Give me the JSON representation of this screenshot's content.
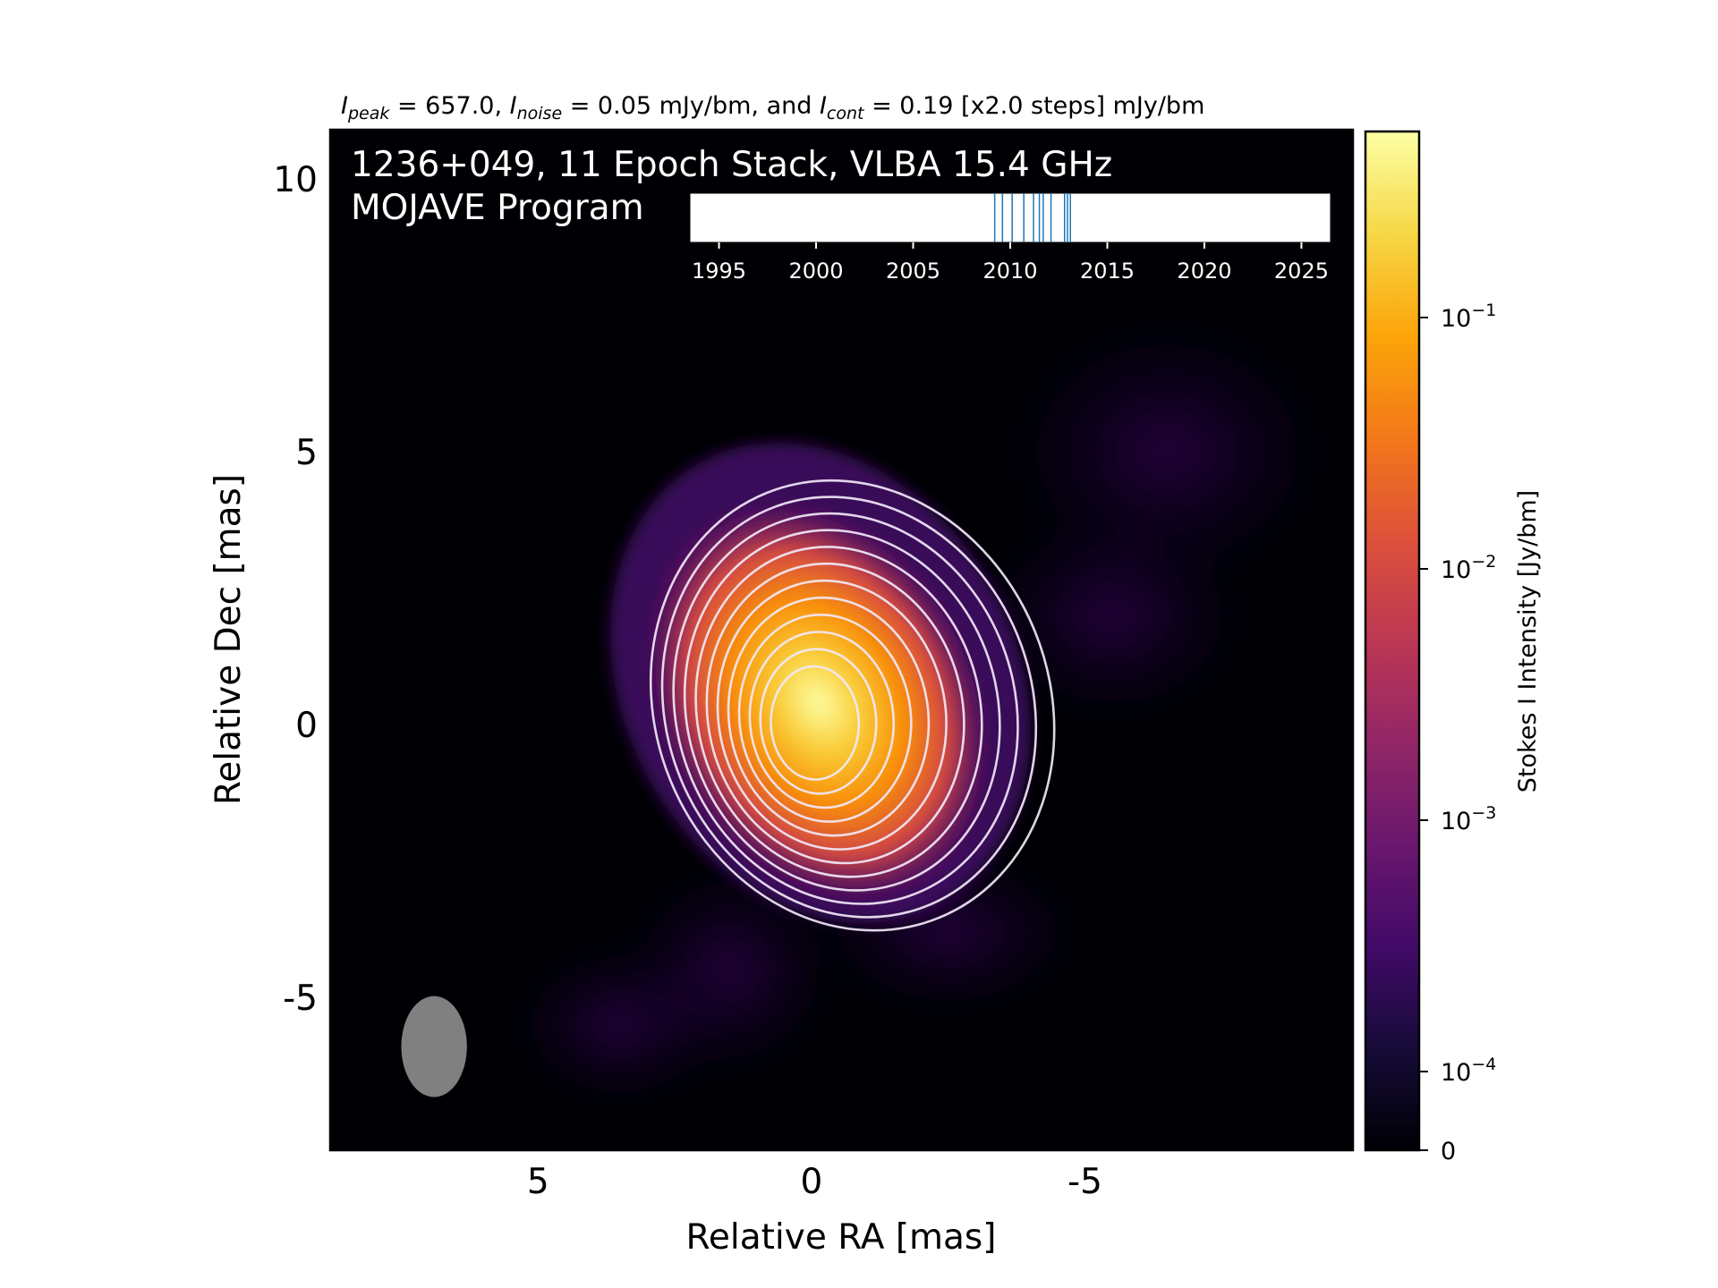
{
  "chart_data": {
    "type": "heatmap",
    "header": {
      "peak_sym": "I",
      "peak_sub": "peak",
      "peak_text": " = 657.0, ",
      "noise_sym": "I",
      "noise_sub": "noise",
      "noise_text": " = 0.05 mJy/bm, and ",
      "cont_sym": "I",
      "cont_sub": "cont",
      "cont_text": " = 0.19 [x2.0 steps] mJy/bm"
    },
    "title_line1": "1236+049, 11 Epoch Stack, VLBA 15.4 GHz",
    "title_line2": "MOJAVE Program",
    "xlabel": "Relative RA [mas]",
    "ylabel": "Relative Dec [mas]",
    "xlim": [
      8.8,
      -9.9
    ],
    "ylim": [
      -7.8,
      10.9
    ],
    "xticks": [
      5,
      0,
      -5
    ],
    "yticks": [
      10,
      5,
      0,
      -5
    ],
    "xtick_labels": [
      "5",
      "0",
      "-5"
    ],
    "ytick_labels": [
      "10",
      "5",
      "0",
      "-5"
    ],
    "source": {
      "peak_ra": 0,
      "peak_dec": 0
    },
    "beam": {
      "ra": 6.9,
      "dec": -5.9,
      "major_mas": 1.85,
      "minor_mas": 1.2,
      "pa_deg": 0,
      "color": "#808080"
    },
    "contour_levels_mjy": [
      0.19,
      0.38,
      0.76,
      1.52,
      3.04,
      6.08,
      12.16,
      24.32,
      48.64,
      97.28,
      194.56,
      389.12
    ],
    "contour_color": "#f2e8f7",
    "epoch_timeline": {
      "xlim": [
        1993.5,
        2026.5
      ],
      "ticks": [
        1995,
        2000,
        2005,
        2010,
        2015,
        2020,
        2025
      ],
      "tick_labels": [
        "1995",
        "2000",
        "2005",
        "2010",
        "2015",
        "2020",
        "2025"
      ],
      "epochs": [
        2009.2,
        2009.6,
        2010.1,
        2010.7,
        2011.2,
        2011.5,
        2011.7,
        2012.1,
        2012.8,
        2012.95,
        2013.1
      ],
      "line_color": "#1f77b4"
    },
    "colorbar": {
      "label": "Stokes I Intensity [Jy/bm]",
      "colormap": "inferno",
      "ticks": [
        {
          "value": 0.1,
          "base": "10",
          "exp": "−1"
        },
        {
          "value": 0.01,
          "base": "10",
          "exp": "−2"
        },
        {
          "value": 0.001,
          "base": "10",
          "exp": "−3"
        },
        {
          "value": 0.0001,
          "base": "10",
          "exp": "−4"
        },
        {
          "value": 0,
          "base": "0",
          "exp": ""
        }
      ]
    }
  }
}
